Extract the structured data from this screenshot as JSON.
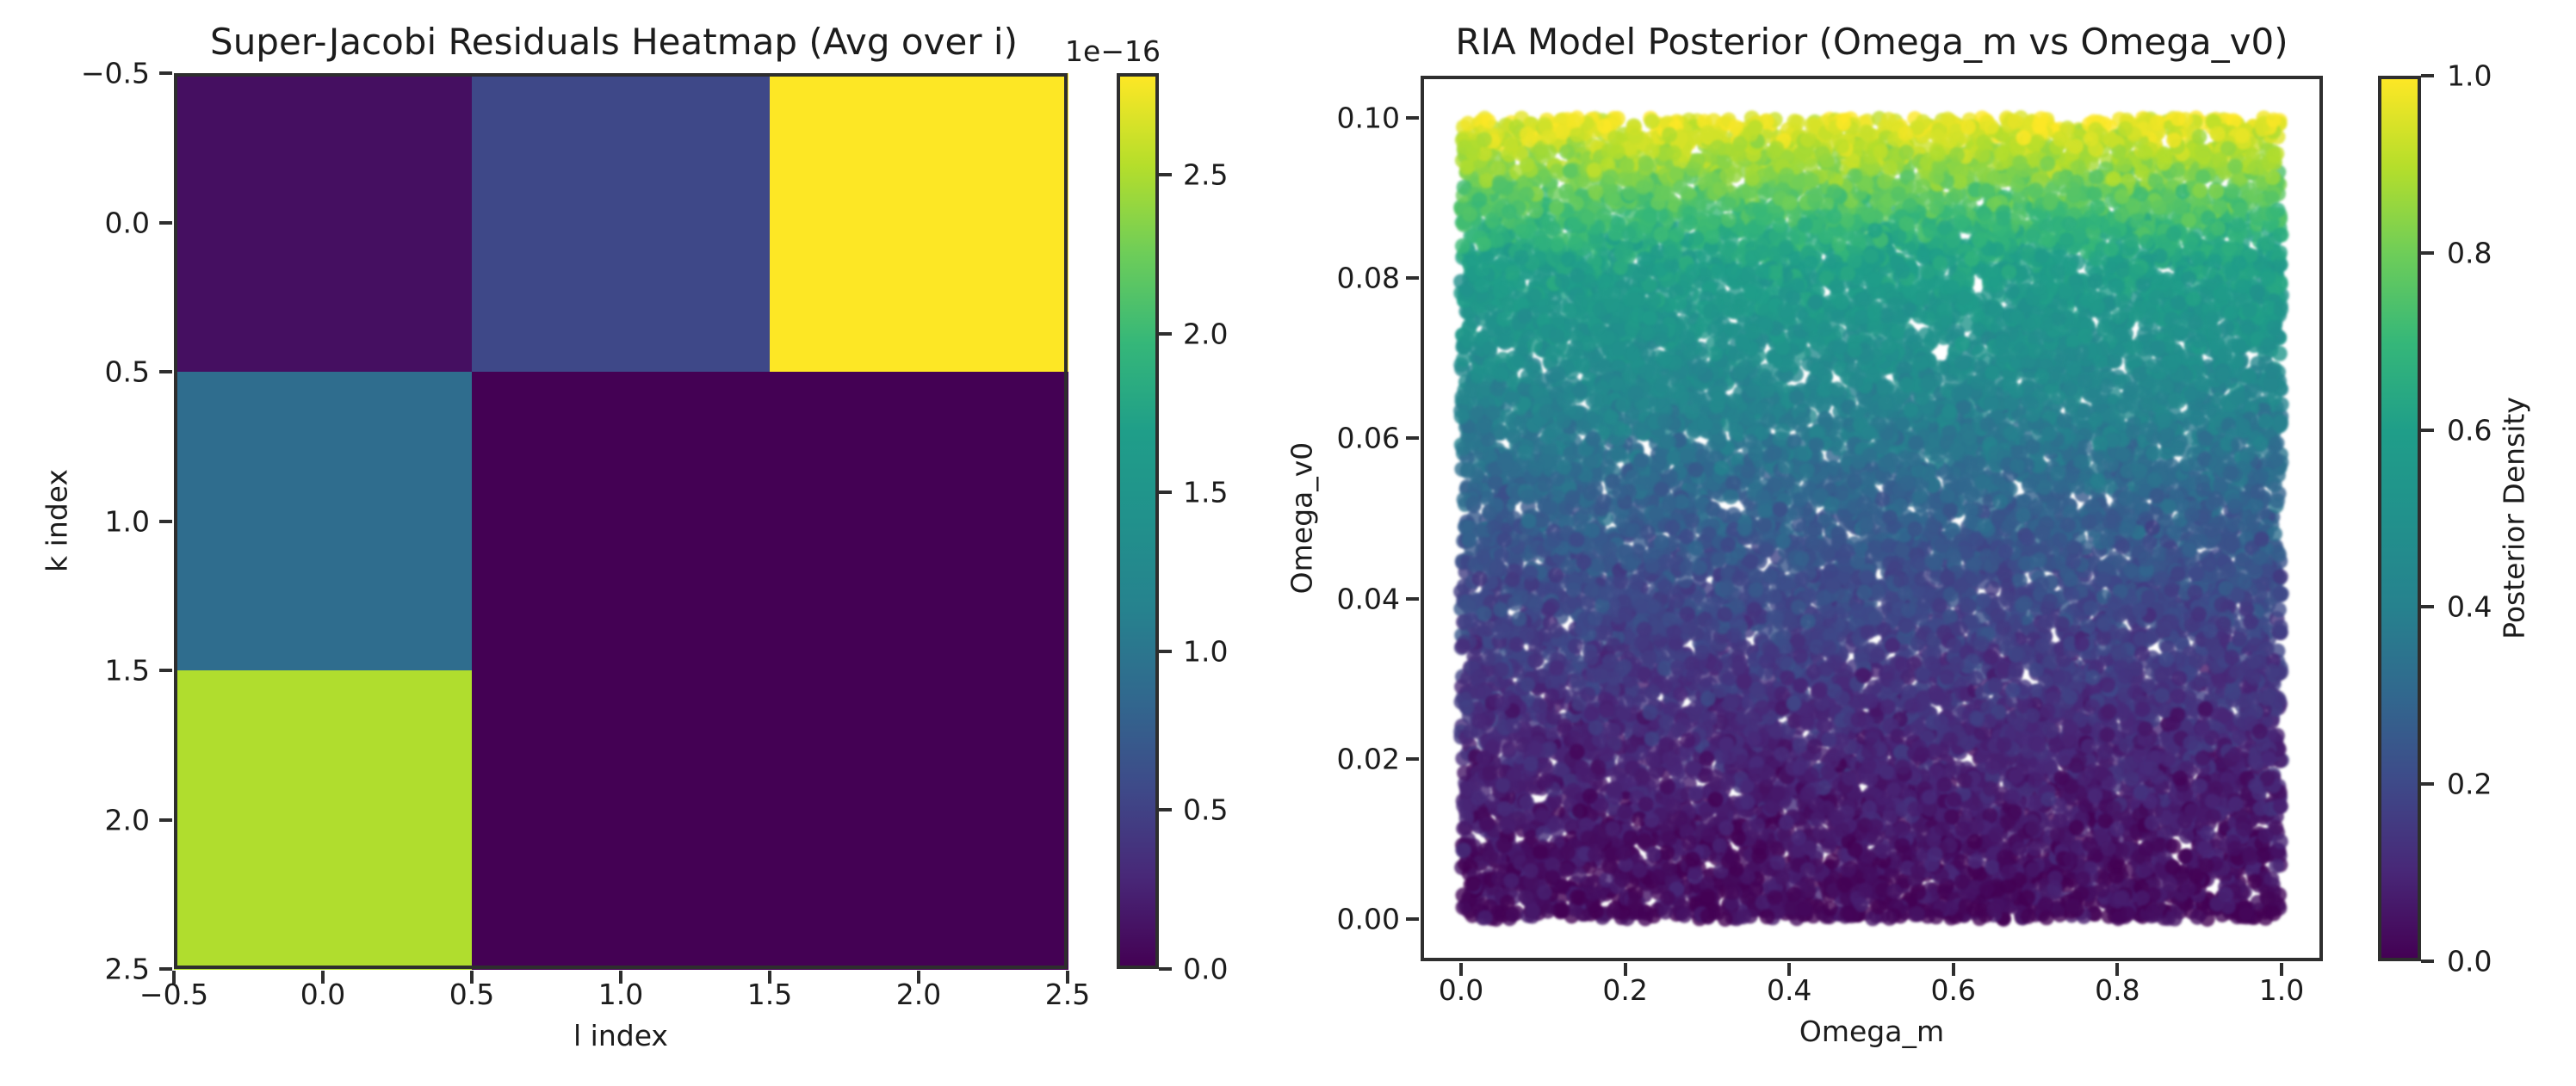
{
  "chart_data": [
    {
      "type": "heatmap",
      "title": "Super-Jacobi Residuals Heatmap (Avg over i)",
      "xlabel": "l index",
      "ylabel": "k index",
      "colormap": "viridis",
      "scale_label": "1e−16",
      "value_scale": "1e-16",
      "vmin": 0.0,
      "vmax": 2.82,
      "rows": [
        "k=0",
        "k=1",
        "k=2"
      ],
      "cols": [
        "l=0",
        "l=1",
        "l=2"
      ],
      "matrix": [
        [
          0.1,
          0.55,
          2.82
        ],
        [
          0.9,
          0.0,
          0.0
        ],
        [
          2.52,
          0.0,
          0.0
        ]
      ],
      "xticks": [
        "−0.5",
        "0.0",
        "0.5",
        "1.0",
        "1.5",
        "2.0",
        "2.5"
      ],
      "xtick_values": [
        -0.5,
        0.0,
        0.5,
        1.0,
        1.5,
        2.0,
        2.5
      ],
      "yticks": [
        "−0.5",
        "0.0",
        "0.5",
        "1.0",
        "1.5",
        "2.0",
        "2.5"
      ],
      "ytick_values": [
        -0.5,
        0.0,
        0.5,
        1.0,
        1.5,
        2.0,
        2.5
      ],
      "colorbar": {
        "ticks": [
          "0.0",
          "0.5",
          "1.0",
          "1.5",
          "2.0",
          "2.5"
        ],
        "tick_values": [
          0.0,
          0.5,
          1.0,
          1.5,
          2.0,
          2.5
        ]
      }
    },
    {
      "type": "scatter",
      "title": "RIA Model Posterior (Omega_m vs Omega_v0)",
      "xlabel": "Omega_m",
      "ylabel": "Omega_v0",
      "colormap": "viridis",
      "xlim": [
        -0.05,
        1.05
      ],
      "ylim": [
        -0.005,
        0.105
      ],
      "xticks": [
        "0.0",
        "0.2",
        "0.4",
        "0.6",
        "0.8",
        "1.0"
      ],
      "xtick_values": [
        0.0,
        0.2,
        0.4,
        0.6,
        0.8,
        1.0
      ],
      "yticks": [
        "0.00",
        "0.02",
        "0.04",
        "0.06",
        "0.08",
        "0.10"
      ],
      "ytick_values": [
        0.0,
        0.02,
        0.04,
        0.06,
        0.08,
        0.1
      ],
      "points": {
        "n": 16000,
        "seed": 42,
        "x_distribution": "uniform [0, 1]",
        "y_distribution": "uniform [0, 0.10]",
        "marker_radius_px": 9,
        "alpha": 0.8,
        "color_rule": "posterior density increases with Omega_v0; viridis fraction from control points",
        "color_control_points": [
          [
            0,
            0.015
          ],
          [
            0.11,
            0.055
          ],
          [
            0.22,
            0.1
          ],
          [
            0.32,
            0.15
          ],
          [
            0.43,
            0.215
          ],
          [
            0.54,
            0.3
          ],
          [
            0.64,
            0.41
          ],
          [
            0.72,
            0.5
          ],
          [
            0.825,
            0.615
          ],
          [
            0.9,
            0.765
          ],
          [
            0.95,
            0.875
          ],
          [
            1.0,
            0.985
          ]
        ],
        "color_noise_sigma": 0.05
      },
      "colorbar": {
        "label": "Posterior Density",
        "ticks": [
          "0.0",
          "0.2",
          "0.4",
          "0.6",
          "0.8",
          "1.0"
        ],
        "tick_values": [
          0.0,
          0.2,
          0.4,
          0.6,
          0.8,
          1.0
        ]
      }
    }
  ]
}
